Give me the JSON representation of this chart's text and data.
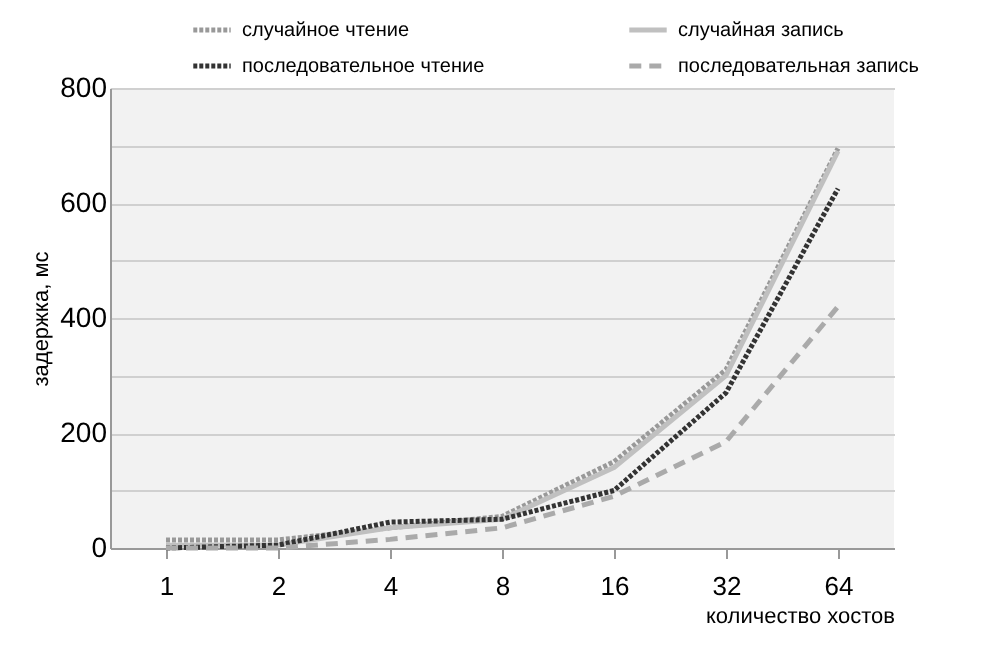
{
  "chart_data": {
    "type": "line",
    "xlabel": "количество хостов",
    "ylabel": "задержка, мс",
    "categories": [
      "1",
      "2",
      "4",
      "8",
      "16",
      "32",
      "64"
    ],
    "ylim": [
      0,
      800
    ],
    "yticks": [
      0,
      {
        "value": 100,
        "label": null
      },
      200,
      {
        "value": 300,
        "label": null
      },
      400,
      {
        "value": 500,
        "label": null
      },
      600,
      {
        "value": 700,
        "label": null
      },
      800
    ],
    "grid": "y",
    "legend": "top",
    "series": [
      {
        "name": "случайное чтение",
        "color": "#999999",
        "line_style": "dotted",
        "values": [
          14,
          14,
          35,
          55,
          150,
          310,
          695
        ]
      },
      {
        "name": "случайная запись",
        "color": "#c0c0c0",
        "line_style": "solid",
        "values": [
          5,
          5,
          35,
          50,
          140,
          300,
          690
        ]
      },
      {
        "name": "последовательное чтение",
        "color": "#333333",
        "line_style": "dotted",
        "values": [
          0,
          5,
          45,
          50,
          100,
          270,
          625
        ]
      },
      {
        "name": "последовательная запись",
        "color": "#aaaaaa",
        "line_style": "dashed",
        "values": [
          0,
          0,
          15,
          35,
          90,
          185,
          420
        ]
      }
    ]
  }
}
